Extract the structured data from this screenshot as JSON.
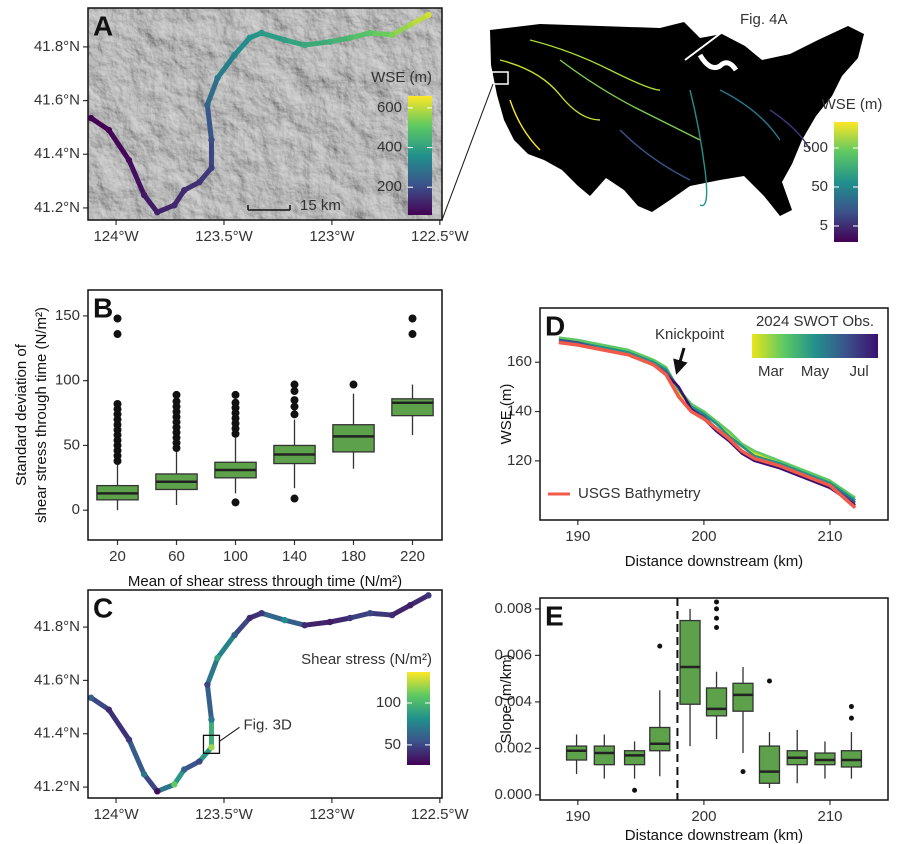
{
  "chart_data": [
    {
      "type": "map",
      "label": "A",
      "hillshade": true,
      "scale_bar": "15 km",
      "xlim": [
        -124.13,
        -122.49
      ],
      "ylim": [
        41.155,
        41.945
      ],
      "xticks": [
        {
          "value": -124,
          "label": "124°W"
        },
        {
          "value": -123.5,
          "label": "123.5°W"
        },
        {
          "value": -123,
          "label": "123°W"
        },
        {
          "value": -122.5,
          "label": "122.5°W"
        }
      ],
      "yticks": [
        {
          "value": 41.2,
          "label": "41.2°N"
        },
        {
          "value": 41.4,
          "label": "41.4°N"
        },
        {
          "value": 41.6,
          "label": "41.6°N"
        },
        {
          "value": 41.8,
          "label": "41.8°N"
        }
      ],
      "x": [
        -124.116,
        -124.033,
        -123.94,
        -123.87,
        -123.809,
        -123.73,
        -123.684,
        -123.614,
        -123.558,
        -123.558,
        -123.577,
        -123.53,
        -123.451,
        -123.381,
        -123.326,
        -123.219,
        -123.126,
        -123.009,
        -122.916,
        -122.823,
        -122.721,
        -122.637,
        -122.553
      ],
      "y": [
        41.535,
        41.49,
        41.378,
        41.248,
        41.184,
        41.21,
        41.266,
        41.296,
        41.349,
        41.453,
        41.584,
        41.684,
        41.77,
        41.834,
        41.852,
        41.826,
        41.807,
        41.819,
        41.834,
        41.852,
        41.845,
        41.882,
        41.919
      ],
      "values": [
        40,
        60,
        80,
        100,
        120,
        130,
        140,
        150,
        170,
        200,
        250,
        300,
        330,
        360,
        380,
        400,
        420,
        440,
        470,
        500,
        540,
        580,
        620
      ],
      "colorbar": {
        "title": "WSE (m)",
        "lim": [
          60,
          660
        ],
        "ticks": [
          200,
          400,
          600
        ],
        "colors": [
          "#440154",
          "#3b528b",
          "#21918c",
          "#5ec962",
          "#fde725"
        ]
      }
    },
    {
      "type": "inset-map",
      "annotation": "Fig. 4A",
      "colorbar": {
        "title": "WSE (m)",
        "lim": [
          1.94,
          2320
        ],
        "log": true,
        "ticks": [
          5,
          50,
          500
        ],
        "colors": [
          "#440154",
          "#3b528b",
          "#21918c",
          "#5ec962",
          "#fde725"
        ]
      }
    },
    {
      "type": "boxplot",
      "label": "B",
      "xlabel": "Mean of shear stress through time (N/m²)",
      "ylabel": [
        "Standard deviation of",
        "shear stress through time (N/m²)"
      ],
      "categories": [
        20,
        60,
        100,
        140,
        180,
        220
      ],
      "color": "#5da14a",
      "ylim": [
        -23,
        170
      ],
      "yticks": [
        0,
        50,
        100,
        150
      ],
      "boxes": [
        {
          "low": 0,
          "q1": 8,
          "median": 13,
          "q3": 19,
          "high": 35,
          "outliers": [
            38,
            42,
            46,
            50,
            54,
            58,
            62,
            66,
            70,
            74,
            78,
            82,
            136,
            148
          ]
        },
        {
          "low": 4,
          "q1": 16,
          "median": 22,
          "q3": 28,
          "high": 45,
          "outliers": [
            48,
            52,
            56,
            60,
            64,
            68,
            72,
            76,
            80,
            84,
            89
          ]
        },
        {
          "low": 13,
          "q1": 25,
          "median": 31,
          "q3": 37,
          "high": 56,
          "outliers": [
            6,
            59,
            63,
            67,
            71,
            75,
            79,
            83,
            89
          ]
        },
        {
          "low": 17,
          "q1": 36,
          "median": 43,
          "q3": 50,
          "high": 70,
          "outliers": [
            9,
            74,
            80,
            85,
            92,
            97
          ]
        },
        {
          "low": 32,
          "q1": 45,
          "median": 57,
          "q3": 66,
          "high": 90,
          "outliers": [
            97
          ]
        },
        {
          "low": 58,
          "q1": 73,
          "median": 83,
          "q3": 86,
          "high": 97,
          "outliers": [
            136,
            148
          ]
        }
      ]
    },
    {
      "type": "map",
      "label": "C",
      "annotation": "Fig. 3D",
      "annotation_point": 8,
      "xlim": [
        -124.13,
        -122.49
      ],
      "ylim": [
        41.159,
        41.939
      ],
      "xticks": [
        {
          "value": -124,
          "label": "124°W"
        },
        {
          "value": -123.5,
          "label": "123.5°W"
        },
        {
          "value": -123,
          "label": "123°W"
        },
        {
          "value": -122.5,
          "label": "122.5°W"
        }
      ],
      "yticks": [
        {
          "value": 41.2,
          "label": "41.2°N"
        },
        {
          "value": 41.4,
          "label": "41.4°N"
        },
        {
          "value": 41.6,
          "label": "41.6°N"
        },
        {
          "value": 41.8,
          "label": "41.8°N"
        }
      ],
      "x": [
        -124.116,
        -124.033,
        -123.94,
        -123.87,
        -123.809,
        -123.73,
        -123.684,
        -123.614,
        -123.558,
        -123.558,
        -123.577,
        -123.53,
        -123.451,
        -123.381,
        -123.326,
        -123.219,
        -123.126,
        -123.009,
        -122.916,
        -122.823,
        -122.721,
        -122.637,
        -122.553
      ],
      "y": [
        41.535,
        41.49,
        41.378,
        41.248,
        41.184,
        41.21,
        41.266,
        41.296,
        41.349,
        41.453,
        41.584,
        41.684,
        41.77,
        41.834,
        41.852,
        41.826,
        41.807,
        41.819,
        41.834,
        41.852,
        41.845,
        41.882,
        41.919
      ],
      "values": [
        60,
        40,
        45,
        70,
        30,
        110,
        60,
        50,
        120,
        70,
        50,
        90,
        60,
        40,
        45,
        80,
        40,
        35,
        45,
        50,
        40,
        35,
        45
      ],
      "colorbar": {
        "title": "Shear stress (N/m²)",
        "lim": [
          26,
          137
        ],
        "ticks": [
          50,
          100
        ],
        "colors": [
          "#440154",
          "#3b528b",
          "#21918c",
          "#5ec962",
          "#fde725"
        ]
      }
    },
    {
      "type": "line",
      "label": "D",
      "annotation": "Knickpoint",
      "legend": "bottom-left",
      "xlabel": "Distance downstream (km)",
      "ylabel": "WSE (m)",
      "xlim": [
        187,
        214.6
      ],
      "ylim": [
        96,
        182
      ],
      "xticks": [
        190,
        200,
        210
      ],
      "yticks": [
        120,
        140,
        160
      ],
      "x": [
        188.5,
        190,
        192,
        194,
        196,
        197,
        198,
        199,
        200,
        201,
        202,
        203,
        204,
        206,
        208,
        210,
        212
      ],
      "series": [
        {
          "color": "#d8dc1e",
          "values": [
            170,
            168,
            166,
            164,
            160,
            157,
            148,
            142,
            139,
            135,
            131,
            126,
            123,
            119,
            115,
            111,
            104
          ]
        },
        {
          "color": "#5ec962",
          "values": [
            170,
            169,
            167,
            165,
            161,
            158,
            149,
            143,
            140,
            136,
            132,
            127,
            124,
            120,
            116,
            112,
            105
          ]
        },
        {
          "color": "#21918c",
          "values": [
            169,
            168,
            166,
            164,
            160,
            157,
            149,
            142,
            139,
            135,
            130,
            126,
            122,
            119,
            115,
            111,
            104
          ]
        },
        {
          "color": "#3b528b",
          "values": [
            169,
            168,
            165,
            163,
            159,
            156,
            150,
            141,
            138,
            133,
            129,
            124,
            121,
            118,
            114,
            110,
            103
          ]
        },
        {
          "color": "#3b0f70",
          "values": [
            168,
            167,
            165,
            163,
            159,
            155,
            150,
            141,
            137,
            132,
            128,
            123,
            120,
            117,
            113,
            109,
            102
          ]
        },
        {
          "name": "USGS Bathymetry",
          "color": "#f05a4a",
          "values": [
            168,
            167,
            165,
            163,
            159,
            155,
            146,
            140,
            137,
            133,
            129,
            124,
            121,
            118,
            114,
            110,
            101
          ]
        }
      ],
      "colorbar": {
        "title": "2024 SWOT Obs.",
        "labels": [
          "Mar",
          "May",
          "Jul"
        ],
        "colors": [
          "#e8e619",
          "#5ec962",
          "#21918c",
          "#3b528b",
          "#3b0f70"
        ]
      }
    },
    {
      "type": "boxplot",
      "label": "E",
      "xlabel": "Distance downstream (km)",
      "ylabel": "Slope (m/km)",
      "color": "#5da14a",
      "vline": 197.9,
      "vline_dashed": true,
      "xlim": [
        187,
        214.6
      ],
      "xticks": [
        190,
        200,
        210
      ],
      "ylim": [
        -0.00022,
        0.00847
      ],
      "yticks": [
        {
          "value": 0,
          "label": "0.000"
        },
        {
          "value": 0.002,
          "label": "0.002"
        },
        {
          "value": 0.004,
          "label": "0.004"
        },
        {
          "value": 0.006,
          "label": "0.006"
        },
        {
          "value": 0.008,
          "label": "0.008"
        }
      ],
      "x": [
        189.9,
        192.1,
        194.5,
        196.5,
        198.9,
        201.0,
        203.1,
        205.2,
        207.4,
        209.6,
        211.7
      ],
      "boxes": [
        {
          "low": 0.0009,
          "q1": 0.0015,
          "median": 0.0019,
          "q3": 0.0021,
          "high": 0.0026,
          "outliers": []
        },
        {
          "low": 0.0007,
          "q1": 0.0013,
          "median": 0.0018,
          "q3": 0.0021,
          "high": 0.0026,
          "outliers": []
        },
        {
          "low": 0.0007,
          "q1": 0.0013,
          "median": 0.0017,
          "q3": 0.0019,
          "high": 0.0023,
          "outliers": [
            0.0002
          ]
        },
        {
          "low": 0.0008,
          "q1": 0.0019,
          "median": 0.0022,
          "q3": 0.0029,
          "high": 0.0045,
          "outliers": [
            0.0064
          ]
        },
        {
          "low": 0.0021,
          "q1": 0.0039,
          "median": 0.0055,
          "q3": 0.0075,
          "high": 0.008,
          "outliers": []
        },
        {
          "low": 0.0024,
          "q1": 0.0034,
          "median": 0.0037,
          "q3": 0.0046,
          "high": 0.0053,
          "outliers": [
            0.0072,
            0.0076,
            0.008,
            0.0083
          ]
        },
        {
          "low": 0.0018,
          "q1": 0.0036,
          "median": 0.0043,
          "q3": 0.0048,
          "high": 0.0055,
          "outliers": [
            0.001
          ]
        },
        {
          "low": 0.0003,
          "q1": 0.0005,
          "median": 0.001,
          "q3": 0.0021,
          "high": 0.0027,
          "outliers": [
            0.0049
          ]
        },
        {
          "low": 0.0005,
          "q1": 0.0013,
          "median": 0.0016,
          "q3": 0.0019,
          "high": 0.0028,
          "outliers": []
        },
        {
          "low": 0.0007,
          "q1": 0.0013,
          "median": 0.0015,
          "q3": 0.0018,
          "high": 0.0023,
          "outliers": []
        },
        {
          "low": 0.0007,
          "q1": 0.0012,
          "median": 0.0015,
          "q3": 0.0019,
          "high": 0.0027,
          "outliers": [
            0.0033,
            0.0038
          ]
        }
      ]
    }
  ]
}
